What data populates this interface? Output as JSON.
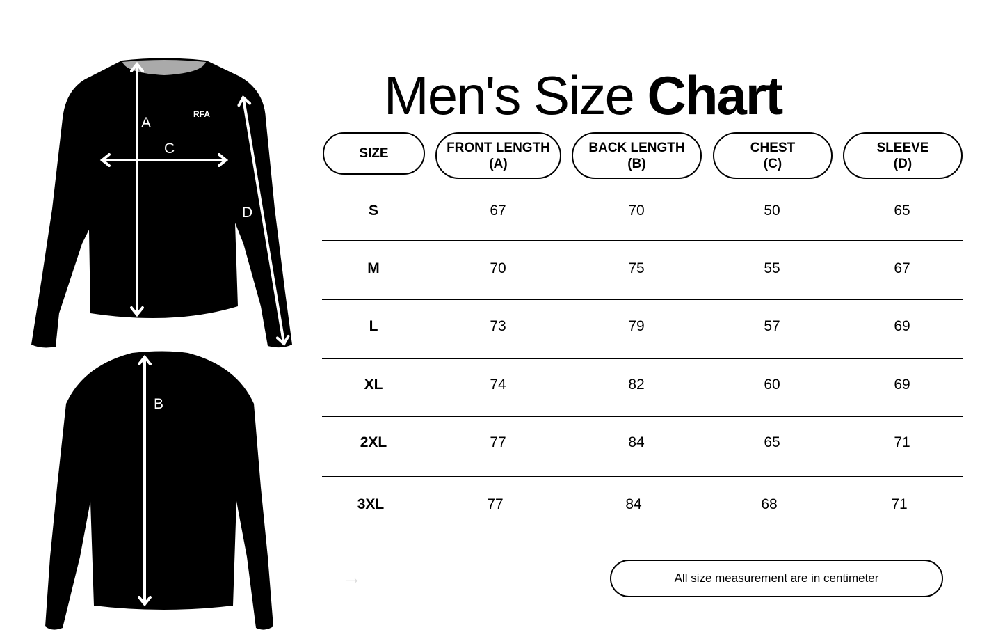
{
  "title": {
    "regular": "Men's Size ",
    "bold": "Chart"
  },
  "diagram": {
    "front_labels": {
      "a": "A",
      "c": "C",
      "d": "D"
    },
    "back_labels": {
      "b": "B"
    },
    "logo_text": "RFA",
    "shirt_color": "#000000",
    "arrow_color": "#ffffff"
  },
  "table": {
    "headers": [
      {
        "line1": "SIZE",
        "line2": ""
      },
      {
        "line1": "FRONT LENGTH",
        "line2": "(A)"
      },
      {
        "line1": "BACK LENGTH",
        "line2": "(B)"
      },
      {
        "line1": "CHEST",
        "line2": "(C)"
      },
      {
        "line1": "SLEEVE",
        "line2": "(D)"
      }
    ],
    "rows": [
      [
        "S",
        "67",
        "70",
        "50",
        "65"
      ],
      [
        "M",
        "70",
        "75",
        "55",
        "67"
      ],
      [
        "L",
        "73",
        "79",
        "57",
        "69"
      ],
      [
        "XL",
        "74",
        "82",
        "60",
        "69"
      ],
      [
        "2XL",
        "77",
        "84",
        "65",
        "71"
      ],
      [
        "3XL",
        "77",
        "84",
        "68",
        "71"
      ]
    ]
  },
  "note": "All size measurement are in centimeter",
  "next_arrow": "→"
}
